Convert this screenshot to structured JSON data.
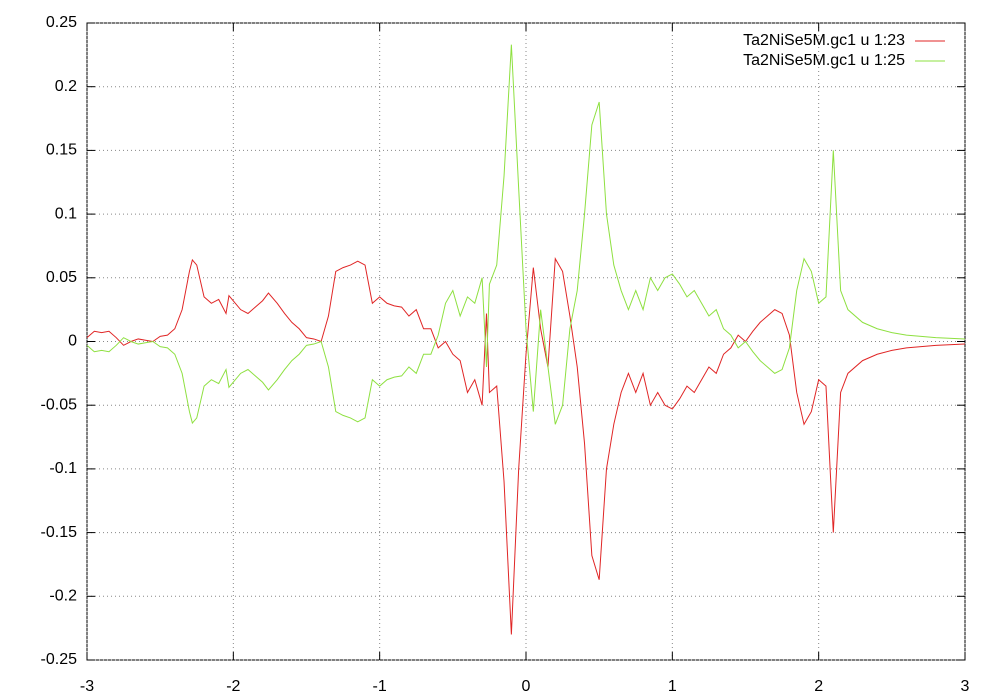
{
  "chart_data": {
    "type": "line",
    "x": [
      -3,
      -2.95,
      -2.9,
      -2.85,
      -2.8,
      -2.75,
      -2.7,
      -2.65,
      -2.6,
      -2.55,
      -2.5,
      -2.45,
      -2.4,
      -2.35,
      -2.3,
      -2.28,
      -2.25,
      -2.2,
      -2.15,
      -2.1,
      -2.05,
      -2.03,
      -1.95,
      -1.9,
      -1.85,
      -1.8,
      -1.76,
      -1.7,
      -1.65,
      -1.6,
      -1.55,
      -1.5,
      -1.45,
      -1.4,
      -1.35,
      -1.3,
      -1.25,
      -1.2,
      -1.15,
      -1.1,
      -1.05,
      -1,
      -0.95,
      -0.9,
      -0.85,
      -0.8,
      -0.75,
      -0.7,
      -0.65,
      -0.6,
      -0.55,
      -0.5,
      -0.45,
      -0.4,
      -0.35,
      -0.3,
      -0.27,
      -0.25,
      -0.2,
      -0.15,
      -0.1,
      -0.05,
      0,
      0.05,
      0.1,
      0.15,
      0.2,
      0.25,
      0.3,
      0.35,
      0.4,
      0.45,
      0.5,
      0.55,
      0.6,
      0.65,
      0.7,
      0.75,
      0.8,
      0.85,
      0.9,
      0.95,
      1,
      1.05,
      1.1,
      1.15,
      1.2,
      1.25,
      1.3,
      1.35,
      1.4,
      1.45,
      1.5,
      1.55,
      1.6,
      1.65,
      1.7,
      1.75,
      1.8,
      1.85,
      1.9,
      1.95,
      2,
      2.05,
      2.1,
      2.15,
      2.2,
      2.3,
      2.4,
      2.5,
      2.6,
      2.8,
      3
    ],
    "series": [
      {
        "name": "Ta2NiSe5M.gc1 u 1:23",
        "color": "#e02525",
        "values": [
          0.003,
          0.008,
          0.007,
          0.008,
          0.003,
          -0.003,
          0,
          0.002,
          0.001,
          0,
          0.004,
          0.005,
          0.01,
          0.025,
          0.055,
          0.064,
          0.06,
          0.035,
          0.03,
          0.033,
          0.022,
          0.036,
          0.025,
          0.022,
          0.027,
          0.032,
          0.038,
          0.03,
          0.022,
          0.015,
          0.01,
          0.003,
          0.002,
          0,
          0.02,
          0.055,
          0.058,
          0.06,
          0.063,
          0.06,
          0.03,
          0.035,
          0.03,
          0.028,
          0.027,
          0.02,
          0.025,
          0.01,
          0.01,
          -0.005,
          0,
          -0.01,
          -0.015,
          -0.04,
          -0.03,
          -0.05,
          0.022,
          -0.04,
          -0.035,
          -0.11,
          -0.23,
          -0.1,
          -0.01,
          0.058,
          0.01,
          -0.02,
          0.065,
          0.055,
          0.02,
          -0.02,
          -0.08,
          -0.168,
          -0.187,
          -0.1,
          -0.065,
          -0.04,
          -0.025,
          -0.04,
          -0.025,
          -0.05,
          -0.04,
          -0.05,
          -0.053,
          -0.045,
          -0.035,
          -0.04,
          -0.03,
          -0.02,
          -0.025,
          -0.01,
          -0.005,
          0.005,
          0,
          0.008,
          0.015,
          0.02,
          0.025,
          0.022,
          0.005,
          -0.04,
          -0.065,
          -0.055,
          -0.03,
          -0.035,
          -0.15,
          -0.04,
          -0.025,
          -0.015,
          -0.01,
          -0.007,
          -0.005,
          -0.003,
          -0.002
        ]
      },
      {
        "name": "Ta2NiSe5M.gc1 u 1:25",
        "color": "#8ee040",
        "values": [
          -0.003,
          -0.008,
          -0.007,
          -0.008,
          -0.003,
          0.003,
          0,
          -0.002,
          -0.001,
          0,
          -0.004,
          -0.005,
          -0.01,
          -0.025,
          -0.055,
          -0.064,
          -0.06,
          -0.035,
          -0.03,
          -0.033,
          -0.022,
          -0.036,
          -0.025,
          -0.022,
          -0.027,
          -0.032,
          -0.038,
          -0.03,
          -0.022,
          -0.015,
          -0.01,
          -0.003,
          -0.002,
          0,
          -0.02,
          -0.055,
          -0.058,
          -0.06,
          -0.063,
          -0.06,
          -0.03,
          -0.035,
          -0.03,
          -0.028,
          -0.027,
          -0.02,
          -0.025,
          -0.01,
          -0.01,
          0.005,
          0.03,
          0.04,
          0.02,
          0.035,
          0.03,
          0.05,
          -0.02,
          0.045,
          0.06,
          0.13,
          0.233,
          0.12,
          0.01,
          -0.055,
          0.025,
          -0.02,
          -0.065,
          -0.05,
          0.01,
          0.04,
          0.1,
          0.17,
          0.188,
          0.1,
          0.06,
          0.04,
          0.025,
          0.04,
          0.025,
          0.05,
          0.04,
          0.05,
          0.053,
          0.045,
          0.035,
          0.04,
          0.03,
          0.02,
          0.025,
          0.01,
          0.005,
          -0.005,
          0,
          -0.008,
          -0.015,
          -0.02,
          -0.025,
          -0.022,
          -0.005,
          0.04,
          0.065,
          0.055,
          0.03,
          0.035,
          0.15,
          0.04,
          0.025,
          0.015,
          0.01,
          0.007,
          0.005,
          0.003,
          0.002
        ]
      }
    ],
    "xlim": [
      -3,
      3
    ],
    "xticks": [
      -3,
      -2,
      -1,
      0,
      1,
      2,
      3
    ],
    "ylim": [
      -0.25,
      0.25
    ],
    "yticks": [
      -0.25,
      -0.2,
      -0.15,
      -0.1,
      -0.05,
      0,
      0.05,
      0.1,
      0.15,
      0.2,
      0.25
    ],
    "grid": true,
    "legend": "top-right"
  }
}
